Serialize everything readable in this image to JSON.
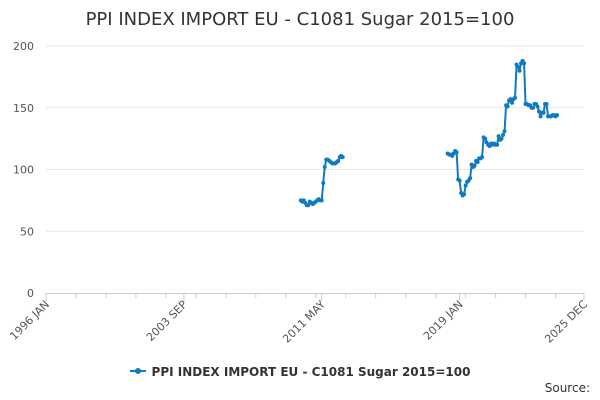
{
  "chart_data": {
    "type": "line",
    "title": "PPI INDEX IMPORT EU - C1081 Sugar 2015=100",
    "xlabel": "",
    "ylabel": "",
    "ylim": [
      0,
      200
    ],
    "yticks": [
      0,
      50,
      100,
      150,
      200
    ],
    "xlim": [
      "1996-01",
      "2025-12"
    ],
    "xtick_labels": [
      "1996 JAN",
      "2003 SEP",
      "2011 MAY",
      "2019 JAN",
      "2025 DEC"
    ],
    "grid": true,
    "legend_position": "bottom",
    "series": [
      {
        "name": "PPI INDEX IMPORT EU - C1081 Sugar 2015=100",
        "color": "#0f7ac2",
        "points": [
          [
            "2010-03",
            75
          ],
          [
            "2010-04",
            74
          ],
          [
            "2010-05",
            75
          ],
          [
            "2010-06",
            73
          ],
          [
            "2010-07",
            71
          ],
          [
            "2010-08",
            71
          ],
          [
            "2010-09",
            74
          ],
          [
            "2010-10",
            73
          ],
          [
            "2010-11",
            72
          ],
          [
            "2010-12",
            73
          ],
          [
            "2011-01",
            74
          ],
          [
            "2011-02",
            75
          ],
          [
            "2011-03",
            76
          ],
          [
            "2011-04",
            75
          ],
          [
            "2011-05",
            75
          ],
          [
            "2011-06",
            89
          ],
          [
            "2011-07",
            102
          ],
          [
            "2011-08",
            108
          ],
          [
            "2011-09",
            108
          ],
          [
            "2011-10",
            107
          ],
          [
            "2011-11",
            106
          ],
          [
            "2011-12",
            105
          ],
          [
            "2012-01",
            105
          ],
          [
            "2012-02",
            105
          ],
          [
            "2012-03",
            106
          ],
          [
            "2012-04",
            107
          ],
          [
            "2012-05",
            110
          ],
          [
            "2012-06",
            111
          ],
          [
            "2012-07",
            110
          ],
          null,
          [
            "2018-05",
            113
          ],
          [
            "2018-06",
            112
          ],
          [
            "2018-07",
            112
          ],
          [
            "2018-08",
            111
          ],
          [
            "2018-09",
            113
          ],
          [
            "2018-10",
            115
          ],
          [
            "2018-11",
            114
          ],
          [
            "2018-12",
            92
          ],
          [
            "2019-01",
            91
          ],
          [
            "2019-02",
            81
          ],
          [
            "2019-03",
            79
          ],
          [
            "2019-04",
            80
          ],
          [
            "2019-05",
            87
          ],
          [
            "2019-06",
            90
          ],
          [
            "2019-07",
            91
          ],
          [
            "2019-08",
            93
          ],
          [
            "2019-09",
            104
          ],
          [
            "2019-10",
            102
          ],
          [
            "2019-11",
            103
          ],
          [
            "2019-12",
            107
          ],
          [
            "2020-01",
            106
          ],
          [
            "2020-02",
            109
          ],
          [
            "2020-03",
            109
          ],
          [
            "2020-04",
            110
          ],
          [
            "2020-05",
            126
          ],
          [
            "2020-06",
            125
          ],
          [
            "2020-07",
            122
          ],
          [
            "2020-08",
            120
          ],
          [
            "2020-09",
            119
          ],
          [
            "2020-10",
            121
          ],
          [
            "2020-11",
            120
          ],
          [
            "2020-12",
            121
          ],
          [
            "2021-01",
            120
          ],
          [
            "2021-02",
            120
          ],
          [
            "2021-03",
            127
          ],
          [
            "2021-04",
            124
          ],
          [
            "2021-05",
            125
          ],
          [
            "2021-06",
            128
          ],
          [
            "2021-07",
            131
          ],
          [
            "2021-08",
            152
          ],
          [
            "2021-09",
            151
          ],
          [
            "2021-10",
            156
          ],
          [
            "2021-11",
            157
          ],
          [
            "2021-12",
            154
          ],
          [
            "2022-01",
            157
          ],
          [
            "2022-02",
            158
          ],
          [
            "2022-03",
            185
          ],
          [
            "2022-04",
            183
          ],
          [
            "2022-05",
            180
          ],
          [
            "2022-06",
            186
          ],
          [
            "2022-07",
            188
          ],
          [
            "2022-08",
            186
          ],
          [
            "2022-09",
            153
          ],
          [
            "2022-10",
            153
          ],
          [
            "2022-11",
            152
          ],
          [
            "2022-12",
            152
          ],
          [
            "2023-01",
            150
          ],
          [
            "2023-02",
            150
          ],
          [
            "2023-03",
            153
          ],
          [
            "2023-04",
            153
          ],
          [
            "2023-05",
            151
          ],
          [
            "2023-06",
            147
          ],
          [
            "2023-07",
            143
          ],
          [
            "2023-08",
            146
          ],
          [
            "2023-09",
            146
          ],
          [
            "2023-10",
            153
          ],
          [
            "2023-11",
            153
          ],
          [
            "2023-12",
            143
          ],
          [
            "2024-01",
            143
          ],
          [
            "2024-02",
            143
          ],
          [
            "2024-03",
            144
          ],
          [
            "2024-04",
            144
          ],
          [
            "2024-05",
            143
          ],
          [
            "2024-06",
            144
          ]
        ]
      }
    ]
  },
  "legend": {
    "label": "PPI INDEX IMPORT EU - C1081 Sugar 2015=100"
  },
  "source": {
    "label": "Source:"
  }
}
